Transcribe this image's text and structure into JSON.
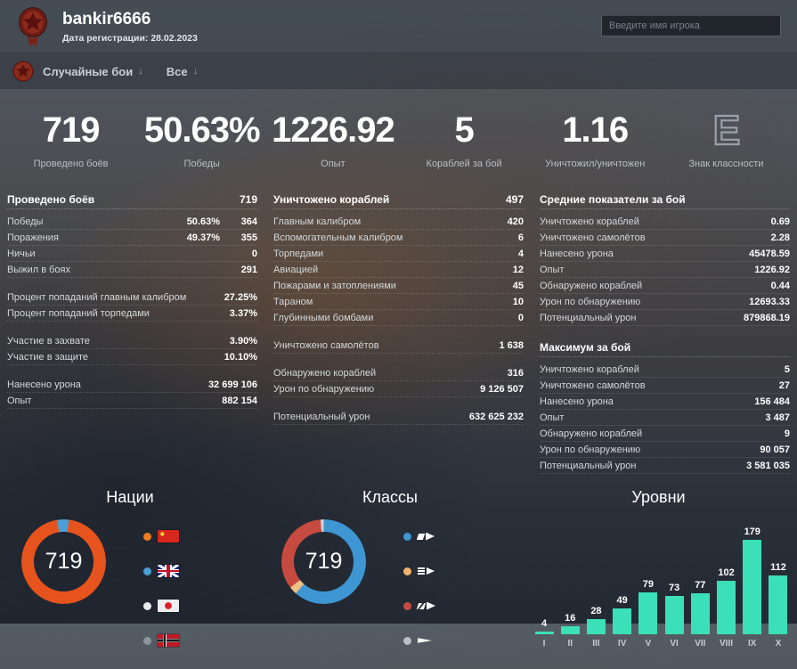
{
  "header": {
    "player_name": "bankir6666",
    "registration": "Дата регистрации: 28.02.2023",
    "search_placeholder": "Введите имя игрока"
  },
  "filters": {
    "battle_type": "Случайные бои",
    "period": "Все",
    "dropdown_arrow": "↓"
  },
  "summary": [
    {
      "value": "719",
      "label": "Проведено боёв"
    },
    {
      "value": "50.63%",
      "label": "Победы"
    },
    {
      "value": "1226.92",
      "label": "Опыт"
    },
    {
      "value": "5",
      "label": "Кораблей за бой"
    },
    {
      "value": "1.16",
      "label": "Уничтожил/уничтожен"
    },
    {
      "value": "E",
      "label": "Знак классности",
      "cls": "outline"
    }
  ],
  "tables": {
    "battles": {
      "title": "Проведено боёв",
      "value": "719",
      "rows": [
        {
          "label": "Победы",
          "pct": "50.63%",
          "val": "364"
        },
        {
          "label": "Поражения",
          "pct": "49.37%",
          "val": "355"
        },
        {
          "label": "Ничьи",
          "val": "0"
        },
        {
          "label": "Выжил в боях",
          "val": "291"
        },
        {
          "label": "Процент попаданий главным калибром",
          "val": "27.25%",
          "gap": true
        },
        {
          "label": "Процент попаданий торпедами",
          "val": "3.37%"
        },
        {
          "label": "Участие в захвате",
          "val": "3.90%",
          "gap": true
        },
        {
          "label": "Участие в защите",
          "val": "10.10%"
        },
        {
          "label": "Нанесено урона",
          "val": "32 699 106",
          "gap": true
        },
        {
          "label": "Опыт",
          "val": "882 154"
        }
      ]
    },
    "destroyed": {
      "title": "Уничтожено кораблей",
      "value": "497",
      "rows": [
        {
          "label": "Главным калибром",
          "val": "420"
        },
        {
          "label": "Вспомогательным калибром",
          "val": "6"
        },
        {
          "label": "Торпедами",
          "val": "4"
        },
        {
          "label": "Авиацией",
          "val": "12"
        },
        {
          "label": "Пожарами и затоплениями",
          "val": "45"
        },
        {
          "label": "Тараном",
          "val": "10"
        },
        {
          "label": "Глубинными бомбами",
          "val": "0"
        },
        {
          "label": "Уничтожено самолётов",
          "val": "1 638",
          "gap": true
        },
        {
          "label": "Обнаружено кораблей",
          "val": "316",
          "gap": true
        },
        {
          "label": "Урон по обнаружению",
          "val": "9 126 507"
        },
        {
          "label": "Потенциальный урон",
          "val": "632 625 232",
          "gap": true
        }
      ]
    },
    "average": {
      "title": "Средние показатели за бой",
      "value": "",
      "rows": [
        {
          "label": "Уничтожено кораблей",
          "val": "0.69"
        },
        {
          "label": "Уничтожено самолётов",
          "val": "2.28"
        },
        {
          "label": "Нанесено урона",
          "val": "45478.59"
        },
        {
          "label": "Опыт",
          "val": "1226.92"
        },
        {
          "label": "Обнаружено кораблей",
          "val": "0.44"
        },
        {
          "label": "Урон по обнаружению",
          "val": "12693.33"
        },
        {
          "label": "Потенциальный урон",
          "val": "879868.19"
        }
      ]
    },
    "maximum": {
      "title": "Максимум за бой",
      "value": "",
      "rows": [
        {
          "label": "Уничтожено кораблей",
          "val": "5"
        },
        {
          "label": "Уничтожено самолётов",
          "val": "27"
        },
        {
          "label": "Нанесено урона",
          "val": "156 484"
        },
        {
          "label": "Опыт",
          "val": "3 487"
        },
        {
          "label": "Обнаружено кораблей",
          "val": "9"
        },
        {
          "label": "Урон по обнаружению",
          "val": "90 057"
        },
        {
          "label": "Потенциальный урон",
          "val": "3 581 035"
        }
      ]
    }
  },
  "chart_data": [
    {
      "type": "pie",
      "title": "Нации",
      "center_label": "719",
      "start_angle_deg": -9,
      "slices": [
        {
          "name": "uk",
          "color": "#4aa0d6",
          "pct": 4.5
        },
        {
          "name": "japan",
          "color": "#e9ebed",
          "pct": 0
        },
        {
          "name": "germany",
          "color": "#8d959c",
          "pct": 0
        },
        {
          "name": "china",
          "color": "#e7531c",
          "pct": 95.5
        }
      ],
      "legend": [
        {
          "icon": "flag-china",
          "dot_color": "#ee7e1e"
        },
        {
          "icon": "flag-uk",
          "dot_color": "#4aa0d6"
        },
        {
          "icon": "flag-japan",
          "dot_color": "#e9ebed"
        },
        {
          "icon": "flag-germany",
          "dot_color": "#8d959c"
        }
      ]
    },
    {
      "type": "pie",
      "title": "Классы",
      "center_label": "719",
      "start_angle_deg": 0,
      "slices": [
        {
          "name": "destroyers",
          "color": "#3e96d2",
          "pct": 61.5
        },
        {
          "name": "battleships",
          "color": "#f0c182",
          "pct": 3
        },
        {
          "name": "cruisers",
          "color": "#c64a3f",
          "pct": 34.3
        },
        {
          "name": "carriers",
          "color": "#cdd3d8",
          "pct": 1.2
        }
      ],
      "legend": [
        {
          "icon": "ship-destroyer",
          "dot_color": "#3e96d2"
        },
        {
          "icon": "ship-battleship",
          "dot_color": "#f0b269"
        },
        {
          "icon": "ship-cruiser",
          "dot_color": "#c64a3f"
        },
        {
          "icon": "ship-carrier",
          "dot_color": "#b9bfc4"
        }
      ]
    },
    {
      "type": "bar",
      "title": "Уровни",
      "categories": [
        "I",
        "II",
        "III",
        "IV",
        "V",
        "VI",
        "VII",
        "VIII",
        "IX",
        "X"
      ],
      "values": [
        4,
        16,
        28,
        49,
        79,
        73,
        77,
        102,
        179,
        112
      ],
      "bar_color": "#3be0b9",
      "ylim": [
        0,
        179
      ],
      "grid": false,
      "value_labels": true
    }
  ]
}
